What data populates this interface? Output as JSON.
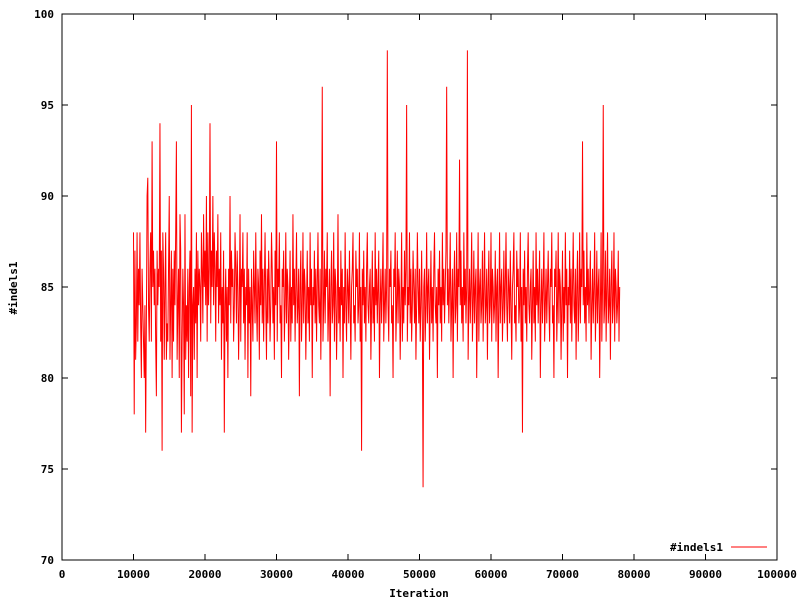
{
  "chart_data": {
    "type": "line",
    "xlabel": "Iteration",
    "ylabel": "#indels1",
    "xlim": [
      0,
      100000
    ],
    "ylim": [
      70,
      100
    ],
    "x_ticks": [
      0,
      10000,
      20000,
      30000,
      40000,
      50000,
      60000,
      70000,
      80000,
      90000,
      100000
    ],
    "x_tick_labels": [
      "0",
      "10000",
      "20000",
      "30000",
      "40000",
      "50000",
      "60000",
      "70000",
      "80000",
      "90000",
      "100000"
    ],
    "y_ticks": [
      70,
      75,
      80,
      85,
      90,
      95,
      100
    ],
    "y_tick_labels": [
      "70",
      "75",
      "80",
      "85",
      "90",
      "95",
      "100"
    ],
    "legend_position": "bottom-right",
    "grid": false,
    "series": [
      {
        "name": "#indels1",
        "color": "#ff0000",
        "x_start": 10000,
        "x_step": 100,
        "values": [
          88,
          78,
          87,
          81,
          83,
          88,
          82,
          86,
          84,
          88,
          83,
          80,
          86,
          84,
          82,
          80,
          84,
          77,
          83,
          90,
          91,
          84,
          82,
          86,
          88,
          82,
          93,
          85,
          87,
          84,
          86,
          82,
          79,
          87,
          84,
          86,
          85,
          94,
          82,
          87,
          76,
          88,
          86,
          81,
          85,
          88,
          81,
          83,
          82,
          86,
          90,
          81,
          84,
          87,
          80,
          86,
          82,
          87,
          84,
          88,
          93,
          81,
          84,
          86,
          80,
          89,
          87,
          77,
          82,
          86,
          84,
          78,
          89,
          81,
          84,
          82,
          86,
          80,
          85,
          87,
          79,
          95,
          77,
          84,
          85,
          81,
          86,
          83,
          88,
          80,
          87,
          84,
          86,
          85,
          82,
          88,
          86,
          83,
          89,
          85,
          87,
          84,
          90,
          82,
          88,
          84,
          86,
          94,
          83,
          87,
          85,
          90,
          84,
          88,
          86,
          82,
          87,
          85,
          89,
          83,
          86,
          84,
          88,
          81,
          85,
          83,
          87,
          77,
          84,
          86,
          82,
          85,
          80,
          86,
          84,
          90,
          83,
          87,
          85,
          86,
          82,
          84,
          88,
          86,
          83,
          87,
          85,
          81,
          84,
          89,
          82,
          86,
          85,
          88,
          83,
          86,
          81,
          85,
          84,
          88,
          80,
          86,
          83,
          85,
          79,
          86,
          84,
          82,
          87,
          85,
          83,
          88,
          84,
          82,
          86,
          85,
          81,
          87,
          84,
          89,
          83,
          86,
          82,
          85,
          88,
          84,
          81,
          86,
          83,
          87,
          85,
          82,
          84,
          88,
          86,
          83,
          85,
          81,
          87,
          84,
          93,
          82,
          86,
          85,
          88,
          83,
          84,
          80,
          86,
          85,
          87,
          82,
          84,
          88,
          83,
          86,
          85,
          81,
          84,
          87,
          82,
          85,
          83,
          89,
          84,
          86,
          82,
          85,
          88,
          83,
          84,
          86,
          79,
          85,
          87,
          82,
          84,
          88,
          83,
          86,
          85,
          81,
          84,
          87,
          83,
          85,
          82,
          88,
          84,
          86,
          80,
          85,
          84,
          87,
          83,
          86,
          82,
          85,
          88,
          84,
          83,
          86,
          81,
          85,
          96,
          82,
          84,
          87,
          83,
          86,
          85,
          88,
          82,
          84,
          86,
          79,
          85,
          87,
          83,
          84,
          88,
          82,
          86,
          85,
          81,
          84,
          89,
          83,
          85,
          82,
          87,
          84,
          86,
          80,
          85,
          83,
          88,
          84,
          82,
          86,
          85,
          83,
          87,
          84,
          81,
          85,
          86,
          88,
          83,
          84,
          82,
          87,
          85,
          86,
          83,
          84,
          88,
          82,
          85,
          76,
          86,
          84,
          87,
          83,
          85,
          82,
          86,
          88,
          84,
          83,
          85,
          86,
          81,
          84,
          87,
          83,
          85,
          82,
          88,
          84,
          86,
          83,
          85,
          87,
          80,
          84,
          86,
          83,
          85,
          88,
          82,
          84,
          86,
          83,
          85,
          98,
          84,
          82,
          86,
          85,
          87,
          83,
          84,
          80,
          86,
          85,
          88,
          82,
          84,
          87,
          83,
          86,
          85,
          81,
          84,
          88,
          82,
          85,
          83,
          87,
          84,
          86,
          95,
          82,
          85,
          84,
          88,
          83,
          86,
          82,
          84,
          87,
          85,
          83,
          86,
          81,
          84,
          88,
          85,
          83,
          86,
          82,
          84,
          87,
          83,
          74,
          85,
          86,
          82,
          84,
          88,
          83,
          85,
          86,
          81,
          84,
          87,
          83,
          85,
          82,
          86,
          88,
          84,
          83,
          85,
          80,
          86,
          84,
          87,
          83,
          85,
          82,
          88,
          84,
          86,
          83,
          85,
          87,
          96,
          84,
          86,
          83,
          85,
          88,
          82,
          84,
          86,
          80,
          85,
          87,
          83,
          84,
          88,
          82,
          86,
          85,
          92,
          84,
          87,
          83,
          85,
          82,
          88,
          84,
          86,
          83,
          85,
          98,
          81,
          84,
          86,
          83,
          85,
          88,
          82,
          84,
          87,
          83,
          85,
          86,
          80,
          84,
          88,
          82,
          85,
          86,
          83,
          84,
          87,
          82,
          85,
          88,
          83,
          84,
          86,
          81,
          85,
          87,
          83,
          84,
          88,
          82,
          86,
          85,
          83,
          84,
          87,
          82,
          85,
          86,
          80,
          84,
          88,
          83,
          85,
          86,
          82,
          84,
          87,
          83,
          85,
          88,
          84,
          82,
          86,
          85,
          83,
          87,
          84,
          81,
          85,
          86,
          88,
          83,
          84,
          82,
          87,
          85,
          86,
          83,
          84,
          88,
          82,
          85,
          77,
          86,
          84,
          87,
          83,
          85,
          82,
          86,
          88,
          84,
          83,
          85,
          86,
          81,
          84,
          87,
          83,
          85,
          82,
          88,
          84,
          86,
          83,
          85,
          87,
          80,
          84,
          86,
          83,
          85,
          88,
          82,
          84,
          86,
          83,
          85,
          87,
          84,
          82,
          86,
          85,
          88,
          83,
          84,
          80,
          86,
          85,
          87,
          82,
          84,
          88,
          83,
          86,
          85,
          81,
          84,
          87,
          82,
          85,
          83,
          88,
          84,
          86,
          80,
          85,
          84,
          87,
          83,
          86,
          82,
          85,
          88,
          84,
          83,
          86,
          81,
          85,
          87,
          82,
          84,
          88,
          83,
          86,
          85,
          93,
          84,
          87,
          83,
          85,
          82,
          88,
          84,
          86,
          83,
          85,
          87,
          81,
          84,
          86,
          83,
          85,
          88,
          82,
          84,
          87,
          83,
          85,
          86,
          80,
          84,
          88,
          82,
          85,
          95,
          83,
          84,
          87,
          82,
          85,
          88,
          83,
          84,
          86,
          81,
          85,
          87,
          83,
          84,
          88,
          82,
          86,
          85,
          83,
          84,
          87,
          82,
          85
        ]
      }
    ]
  }
}
